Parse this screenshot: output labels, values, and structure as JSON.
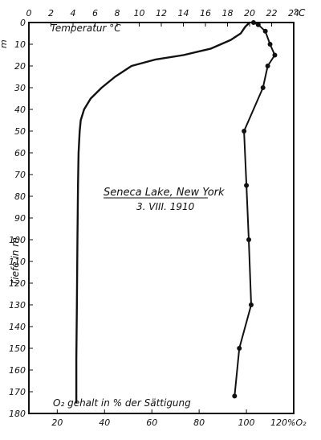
{
  "chart_data": {
    "type": "line",
    "title": "Seneca Lake, New York",
    "subtitle": "3. VIII. 1910",
    "ylabel": "Tiefe in m",
    "top_axis": {
      "unit_label": "°C",
      "ticks": [
        0,
        2,
        4,
        6,
        8,
        10,
        12,
        14,
        16,
        18,
        20,
        22,
        24
      ],
      "range": [
        0,
        24
      ]
    },
    "bottom_axis": {
      "unit_label": "120%O₂",
      "ticks": [
        20,
        40,
        60,
        80,
        100
      ],
      "range": [
        8,
        120
      ]
    },
    "y_axis": {
      "unit_label": "m",
      "ticks": [
        0,
        10,
        20,
        30,
        40,
        50,
        60,
        70,
        80,
        90,
        100,
        110,
        120,
        130,
        140,
        150,
        160,
        170,
        180
      ],
      "range": [
        0,
        180
      ],
      "inverted": true
    },
    "series": [
      {
        "name": "Temperatur °C",
        "axis": "top",
        "points": [
          [
            20,
            0
          ],
          [
            19.6,
            2
          ],
          [
            19.2,
            5
          ],
          [
            18.3,
            8
          ],
          [
            16.5,
            12
          ],
          [
            14.0,
            15
          ],
          [
            11.5,
            17
          ],
          [
            9.3,
            20
          ],
          [
            7.8,
            25
          ],
          [
            6.6,
            30
          ],
          [
            5.6,
            35
          ],
          [
            5.0,
            40
          ],
          [
            4.7,
            45
          ],
          [
            4.6,
            50
          ],
          [
            4.5,
            60
          ],
          [
            4.45,
            75
          ],
          [
            4.4,
            100
          ],
          [
            4.35,
            130
          ],
          [
            4.3,
            155
          ],
          [
            4.3,
            175
          ]
        ]
      },
      {
        "name": "O₂ gehalt in % der Sättigung",
        "axis": "bottom",
        "points": [
          [
            103,
            0
          ],
          [
            105,
            1
          ],
          [
            108,
            4
          ],
          [
            110,
            10
          ],
          [
            112,
            15
          ],
          [
            109,
            20
          ],
          [
            107,
            30
          ],
          [
            99,
            50
          ],
          [
            100,
            75
          ],
          [
            101,
            100
          ],
          [
            102,
            130
          ],
          [
            97,
            150
          ],
          [
            95,
            172
          ]
        ]
      }
    ]
  },
  "labels": {
    "temp_legend": "Temperatur °C",
    "o2_legend": "O₂ gehalt in % der Sättigung",
    "o2_unit": "120%O₂",
    "temp_unit": "°C",
    "depth_unit": "m",
    "depth_label": "Tiefe in m",
    "title": "Seneca Lake, New York",
    "subtitle": "3. VIII. 1910"
  },
  "colors": {
    "ink": "#111111",
    "background": "#ffffff"
  }
}
